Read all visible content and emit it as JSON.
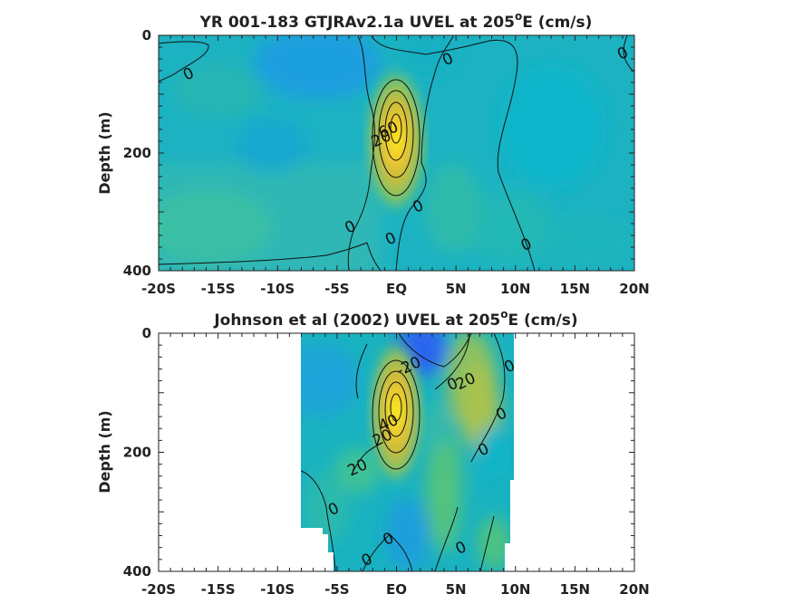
{
  "chart_data": [
    {
      "type": "heatmap",
      "title_main": "YR 001-183 GTJRAv2.1a UVEL at 205",
      "title_sup": "o",
      "title_end": "E (cm/s)",
      "xlabel": "",
      "ylabel": "Depth (m)",
      "xlim": [
        -20,
        20
      ],
      "ylim": [
        0,
        400
      ],
      "y_reversed": true,
      "x_tick_labels": [
        "-20S",
        "-15S",
        "-10S",
        "-5S",
        "EQ",
        "5N",
        "10N",
        "15N",
        "20N"
      ],
      "x_tick_values": [
        -20,
        -15,
        -10,
        -5,
        0,
        5,
        10,
        15,
        20
      ],
      "y_tick_labels": [
        "0",
        "200",
        "400"
      ],
      "y_tick_values": [
        0,
        200,
        400
      ],
      "colormap": "parula",
      "color_range_cm_s": [
        -40,
        100
      ],
      "core": {
        "lat": 0.3,
        "depth_m": 140,
        "max_cm_s": 90
      },
      "contour_labels": [
        {
          "text": "0",
          "lat": -17.5,
          "depth": 65
        },
        {
          "text": "0",
          "lat": 4.3,
          "depth": 40
        },
        {
          "text": "0",
          "lat": 19.0,
          "depth": 30
        },
        {
          "text": "60",
          "lat": -0.7,
          "depth": 160
        },
        {
          "text": "20",
          "lat": -1.3,
          "depth": 175
        },
        {
          "text": "0",
          "lat": 1.8,
          "depth": 290
        },
        {
          "text": "0",
          "lat": -3.9,
          "depth": 325
        },
        {
          "text": "0",
          "lat": -0.5,
          "depth": 345
        },
        {
          "text": "0",
          "lat": 10.9,
          "depth": 355
        }
      ]
    },
    {
      "type": "heatmap",
      "title_main": "Johnson et al (2002) UVEL at 205",
      "title_sup": "o",
      "title_end": "E (cm/s)",
      "xlabel": "",
      "ylabel": "Depth (m)",
      "xlim": [
        -20,
        20
      ],
      "ylim": [
        0,
        400
      ],
      "y_reversed": true,
      "data_lat_range": [
        -8,
        10
      ],
      "x_tick_labels": [
        "-20S",
        "-15S",
        "-10S",
        "-5S",
        "EQ",
        "5N",
        "10N",
        "15N",
        "20N"
      ],
      "x_tick_values": [
        -20,
        -15,
        -10,
        -5,
        0,
        5,
        10,
        15,
        20
      ],
      "y_tick_labels": [
        "0",
        "200",
        "400"
      ],
      "y_tick_values": [
        0,
        200,
        400
      ],
      "colormap": "parula",
      "color_range_cm_s": [
        -40,
        100
      ],
      "core": {
        "lat": 0.0,
        "depth_m": 140,
        "max_cm_s": 95
      },
      "contour_labels": [
        {
          "text": "-20",
          "lat": 1.0,
          "depth": 55
        },
        {
          "text": "20",
          "lat": 5.8,
          "depth": 80
        },
        {
          "text": "0",
          "lat": 4.7,
          "depth": 85
        },
        {
          "text": "0",
          "lat": 9.5,
          "depth": 55
        },
        {
          "text": "0",
          "lat": 8.8,
          "depth": 135
        },
        {
          "text": "40",
          "lat": -0.7,
          "depth": 150
        },
        {
          "text": "20",
          "lat": -1.2,
          "depth": 175
        },
        {
          "text": "0",
          "lat": 7.3,
          "depth": 195
        },
        {
          "text": "20",
          "lat": -3.3,
          "depth": 225
        },
        {
          "text": "0",
          "lat": -5.3,
          "depth": 295
        },
        {
          "text": "0",
          "lat": -0.7,
          "depth": 345
        },
        {
          "text": "0",
          "lat": 5.4,
          "depth": 360
        },
        {
          "text": "0",
          "lat": -2.5,
          "depth": 380
        }
      ]
    }
  ]
}
